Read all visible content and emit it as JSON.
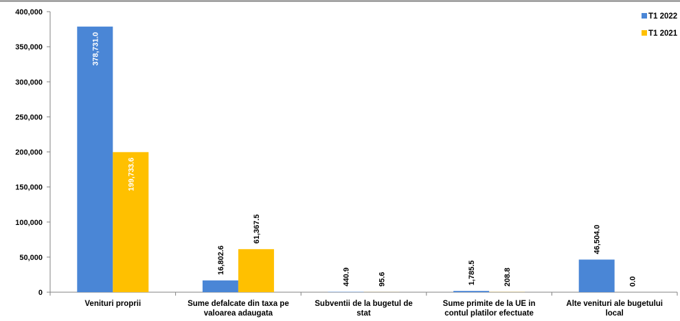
{
  "chart_data": {
    "type": "bar",
    "categories": [
      [
        "Venituri proprii"
      ],
      [
        "Sume defalcate din taxa pe",
        "valoarea adaugata"
      ],
      [
        "Subventii de la bugetul de",
        "stat"
      ],
      [
        "Sume primite de la UE in",
        "contul platilor efectuate"
      ],
      [
        "Alte venituri ale bugetului",
        "local"
      ]
    ],
    "series": [
      {
        "name": "T1 2022",
        "color": "#4a86d6",
        "values": [
          378731.0,
          16802.6,
          440.9,
          1785.5,
          46504.0
        ],
        "labels": [
          "378,731.0",
          "16,802.6",
          "440.9",
          "1,785.5",
          "46,504.0"
        ]
      },
      {
        "name": "T1 2021",
        "color": "#ffc000",
        "values": [
          199733.6,
          61367.5,
          95.6,
          208.8,
          0.0
        ],
        "labels": [
          "199,733.6",
          "61,367.5",
          "95.6",
          "208.8",
          "0.0"
        ]
      }
    ],
    "ylim": [
      0,
      400000
    ],
    "yticks": [
      0,
      50000,
      100000,
      150000,
      200000,
      250000,
      300000,
      350000,
      400000
    ],
    "ytick_labels": [
      "0",
      "50,000",
      "100,000",
      "150,000",
      "200,000",
      "250,000",
      "300,000",
      "350,000",
      "400,000"
    ],
    "grid": false,
    "legend_position": "top-right"
  }
}
